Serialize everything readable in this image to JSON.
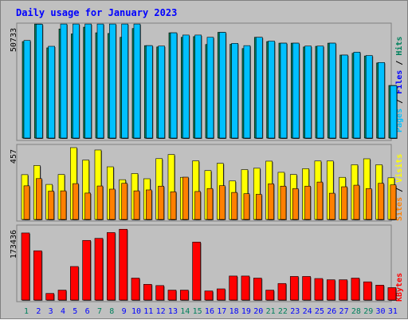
{
  "chart_data": [
    {
      "type": "bar",
      "title": "Daily usage for January 2023",
      "ymax_label": "50733",
      "series": [
        {
          "name": "Hits",
          "color": "#00805c",
          "values": [
            42900,
            50700,
            40100,
            48500,
            46300,
            49300,
            46800,
            46500,
            44800,
            48700,
            41100,
            40500,
            46800,
            44800,
            45100,
            41600,
            47000,
            41700,
            39800,
            44800,
            42900,
            42200,
            42200,
            40500,
            40800,
            42200,
            36900,
            37700,
            36500,
            33400,
            23400
          ]
        },
        {
          "name": "Files",
          "color": "#00c0ff",
          "values": [
            43400,
            50600,
            40800,
            50700,
            50700,
            50700,
            50700,
            50700,
            50700,
            50700,
            41100,
            40900,
            46800,
            45800,
            45800,
            44800,
            47000,
            42100,
            41100,
            44800,
            43100,
            42200,
            42200,
            40900,
            40900,
            42200,
            36900,
            38200,
            36700,
            33600,
            23300
          ]
        },
        {
          "name": "Pages",
          "color": "#00c0ff",
          "values": [
            43400,
            50600,
            40800,
            50700,
            50700,
            50700,
            50700,
            50700,
            50700,
            50700,
            41100,
            40900,
            46800,
            45800,
            45800,
            44800,
            47000,
            42100,
            41100,
            44800,
            43100,
            42200,
            42200,
            40900,
            40900,
            42200,
            36900,
            38200,
            36700,
            33600,
            23300
          ]
        }
      ],
      "legend": [
        "Pages",
        "Files",
        "Hits"
      ]
    },
    {
      "type": "bar",
      "ymax_label": "457",
      "series": [
        {
          "name": "Visits",
          "color": "#ffff00",
          "values": [
            285,
            343,
            223,
            286,
            457,
            378,
            442,
            335,
            253,
            292,
            259,
            387,
            413,
            268,
            373,
            311,
            357,
            245,
            317,
            326,
            371,
            300,
            286,
            323,
            372,
            372,
            268,
            348,
            386,
            348,
            265
          ]
        },
        {
          "name": "Sites",
          "color": "#ff8000",
          "values": [
            214,
            260,
            180,
            182,
            228,
            168,
            213,
            193,
            230,
            182,
            188,
            212,
            176,
            269,
            178,
            197,
            215,
            172,
            164,
            160,
            227,
            212,
            196,
            212,
            238,
            167,
            208,
            218,
            196,
            230,
            220
          ]
        }
      ],
      "legend": [
        "Sites",
        "Visits"
      ]
    },
    {
      "type": "bar",
      "ymax_label": "173436",
      "series": [
        {
          "name": "KBytes",
          "color": "#ff0000",
          "values": [
            162000,
            119000,
            16000,
            24000,
            81000,
            144000,
            149000,
            163000,
            171000,
            53000,
            38000,
            35000,
            24000,
            24000,
            140000,
            22000,
            27000,
            58000,
            58000,
            53000,
            24000,
            40000,
            57000,
            57000,
            52000,
            49000,
            49000,
            53000,
            44000,
            36000,
            30000
          ]
        }
      ],
      "legend": [
        "KBytes"
      ]
    }
  ],
  "days": [
    "1",
    "2",
    "3",
    "4",
    "5",
    "6",
    "7",
    "8",
    "9",
    "10",
    "11",
    "12",
    "13",
    "14",
    "15",
    "16",
    "17",
    "18",
    "19",
    "20",
    "21",
    "22",
    "23",
    "24",
    "25",
    "26",
    "27",
    "28",
    "29",
    "30",
    "31"
  ],
  "weekend_days": [
    "1",
    "7",
    "8",
    "14",
    "15",
    "21",
    "22",
    "28",
    "29"
  ],
  "colors": {
    "title": "#0000ff",
    "weekend": "#00805c",
    "weekday": "#0000ff",
    "pages": "#00c0ff",
    "files": "#0000ff",
    "hits": "#00805c",
    "sites": "#ff8000",
    "visits": "#ffff00",
    "kbytes": "#ff0000"
  }
}
